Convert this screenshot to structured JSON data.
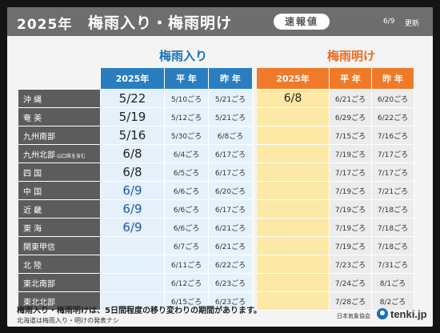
{
  "header": {
    "year": "2025年",
    "title": "梅雨入り・梅雨明け",
    "badge": "速報値",
    "date": "6/9",
    "update_label": "更新"
  },
  "groups": {
    "tsuyuiri": "梅雨入り",
    "tsuyuake": "梅雨明け"
  },
  "columns": {
    "current": "2025年",
    "normal": "平 年",
    "last_year": "昨 年"
  },
  "rows": [
    {
      "region": "沖 縄",
      "sub": "",
      "iri": "5/22",
      "iri_normal": "5/10ごろ",
      "iri_last": "5/21ごろ",
      "ake": "6/8",
      "ake_normal": "6/21ごろ",
      "ake_last": "6/20ごろ"
    },
    {
      "region": "奄 美",
      "sub": "",
      "iri": "5/19",
      "iri_normal": "5/12ごろ",
      "iri_last": "5/21ごろ",
      "ake": "",
      "ake_normal": "6/29ごろ",
      "ake_last": "6/22ごろ"
    },
    {
      "region": "九州南部",
      "sub": "",
      "iri": "5/16",
      "iri_normal": "5/30ごろ",
      "iri_last": "6/8ごろ",
      "ake": "",
      "ake_normal": "7/15ごろ",
      "ake_last": "7/16ごろ"
    },
    {
      "region": "九州北部",
      "sub": "山口県を含む",
      "iri": "6/8",
      "iri_normal": "6/4ごろ",
      "iri_last": "6/17ごろ",
      "ake": "",
      "ake_normal": "7/19ごろ",
      "ake_last": "7/17ごろ"
    },
    {
      "region": "四 国",
      "sub": "",
      "iri": "6/8",
      "iri_normal": "6/5ごろ",
      "iri_last": "6/17ごろ",
      "ake": "",
      "ake_normal": "7/17ごろ",
      "ake_last": "7/17ごろ"
    },
    {
      "region": "中 国",
      "sub": "",
      "iri": "6/9",
      "iri_normal": "6/6ごろ",
      "iri_last": "6/20ごろ",
      "ake": "",
      "ake_normal": "7/19ごろ",
      "ake_last": "7/21ごろ"
    },
    {
      "region": "近 畿",
      "sub": "",
      "iri": "6/9",
      "iri_normal": "6/6ごろ",
      "iri_last": "6/17ごろ",
      "ake": "",
      "ake_normal": "7/19ごろ",
      "ake_last": "7/18ごろ"
    },
    {
      "region": "東 海",
      "sub": "",
      "iri": "6/9",
      "iri_normal": "6/6ごろ",
      "iri_last": "6/21ごろ",
      "ake": "",
      "ake_normal": "7/19ごろ",
      "ake_last": "7/18ごろ"
    },
    {
      "region": "関東甲信",
      "sub": "",
      "iri": "",
      "iri_normal": "6/7ごろ",
      "iri_last": "6/21ごろ",
      "ake": "",
      "ake_normal": "7/19ごろ",
      "ake_last": "7/18ごろ"
    },
    {
      "region": "北 陸",
      "sub": "",
      "iri": "",
      "iri_normal": "6/11ごろ",
      "iri_last": "6/22ごろ",
      "ake": "",
      "ake_normal": "7/23ごろ",
      "ake_last": "7/31ごろ"
    },
    {
      "region": "東北南部",
      "sub": "",
      "iri": "",
      "iri_normal": "6/12ごろ",
      "iri_last": "6/23ごろ",
      "ake": "",
      "ake_normal": "7/24ごろ",
      "ake_last": "8/1ごろ"
    },
    {
      "region": "東北北部",
      "sub": "",
      "iri": "",
      "iri_normal": "6/15ごろ",
      "iri_last": "6/23ごろ",
      "ake": "",
      "ake_normal": "7/28ごろ",
      "ake_last": "8/2ごろ"
    }
  ],
  "footer": {
    "note": "梅雨入り・梅雨明けは、5日間程度の移り変わりの期間があります。",
    "sub_note": "北海道は梅雨入り・明けの発表ナシ",
    "association": "日本気象協会",
    "logo_text": "tenki.jp"
  },
  "colors": {
    "header_bg": "#6e6e6e",
    "tsuyuiri_blue": "#2a7ec0",
    "tsuyuake_orange": "#f07a28",
    "ake_current_bg": "#fde9a6",
    "region_label_bg": "#5c5c5c"
  }
}
